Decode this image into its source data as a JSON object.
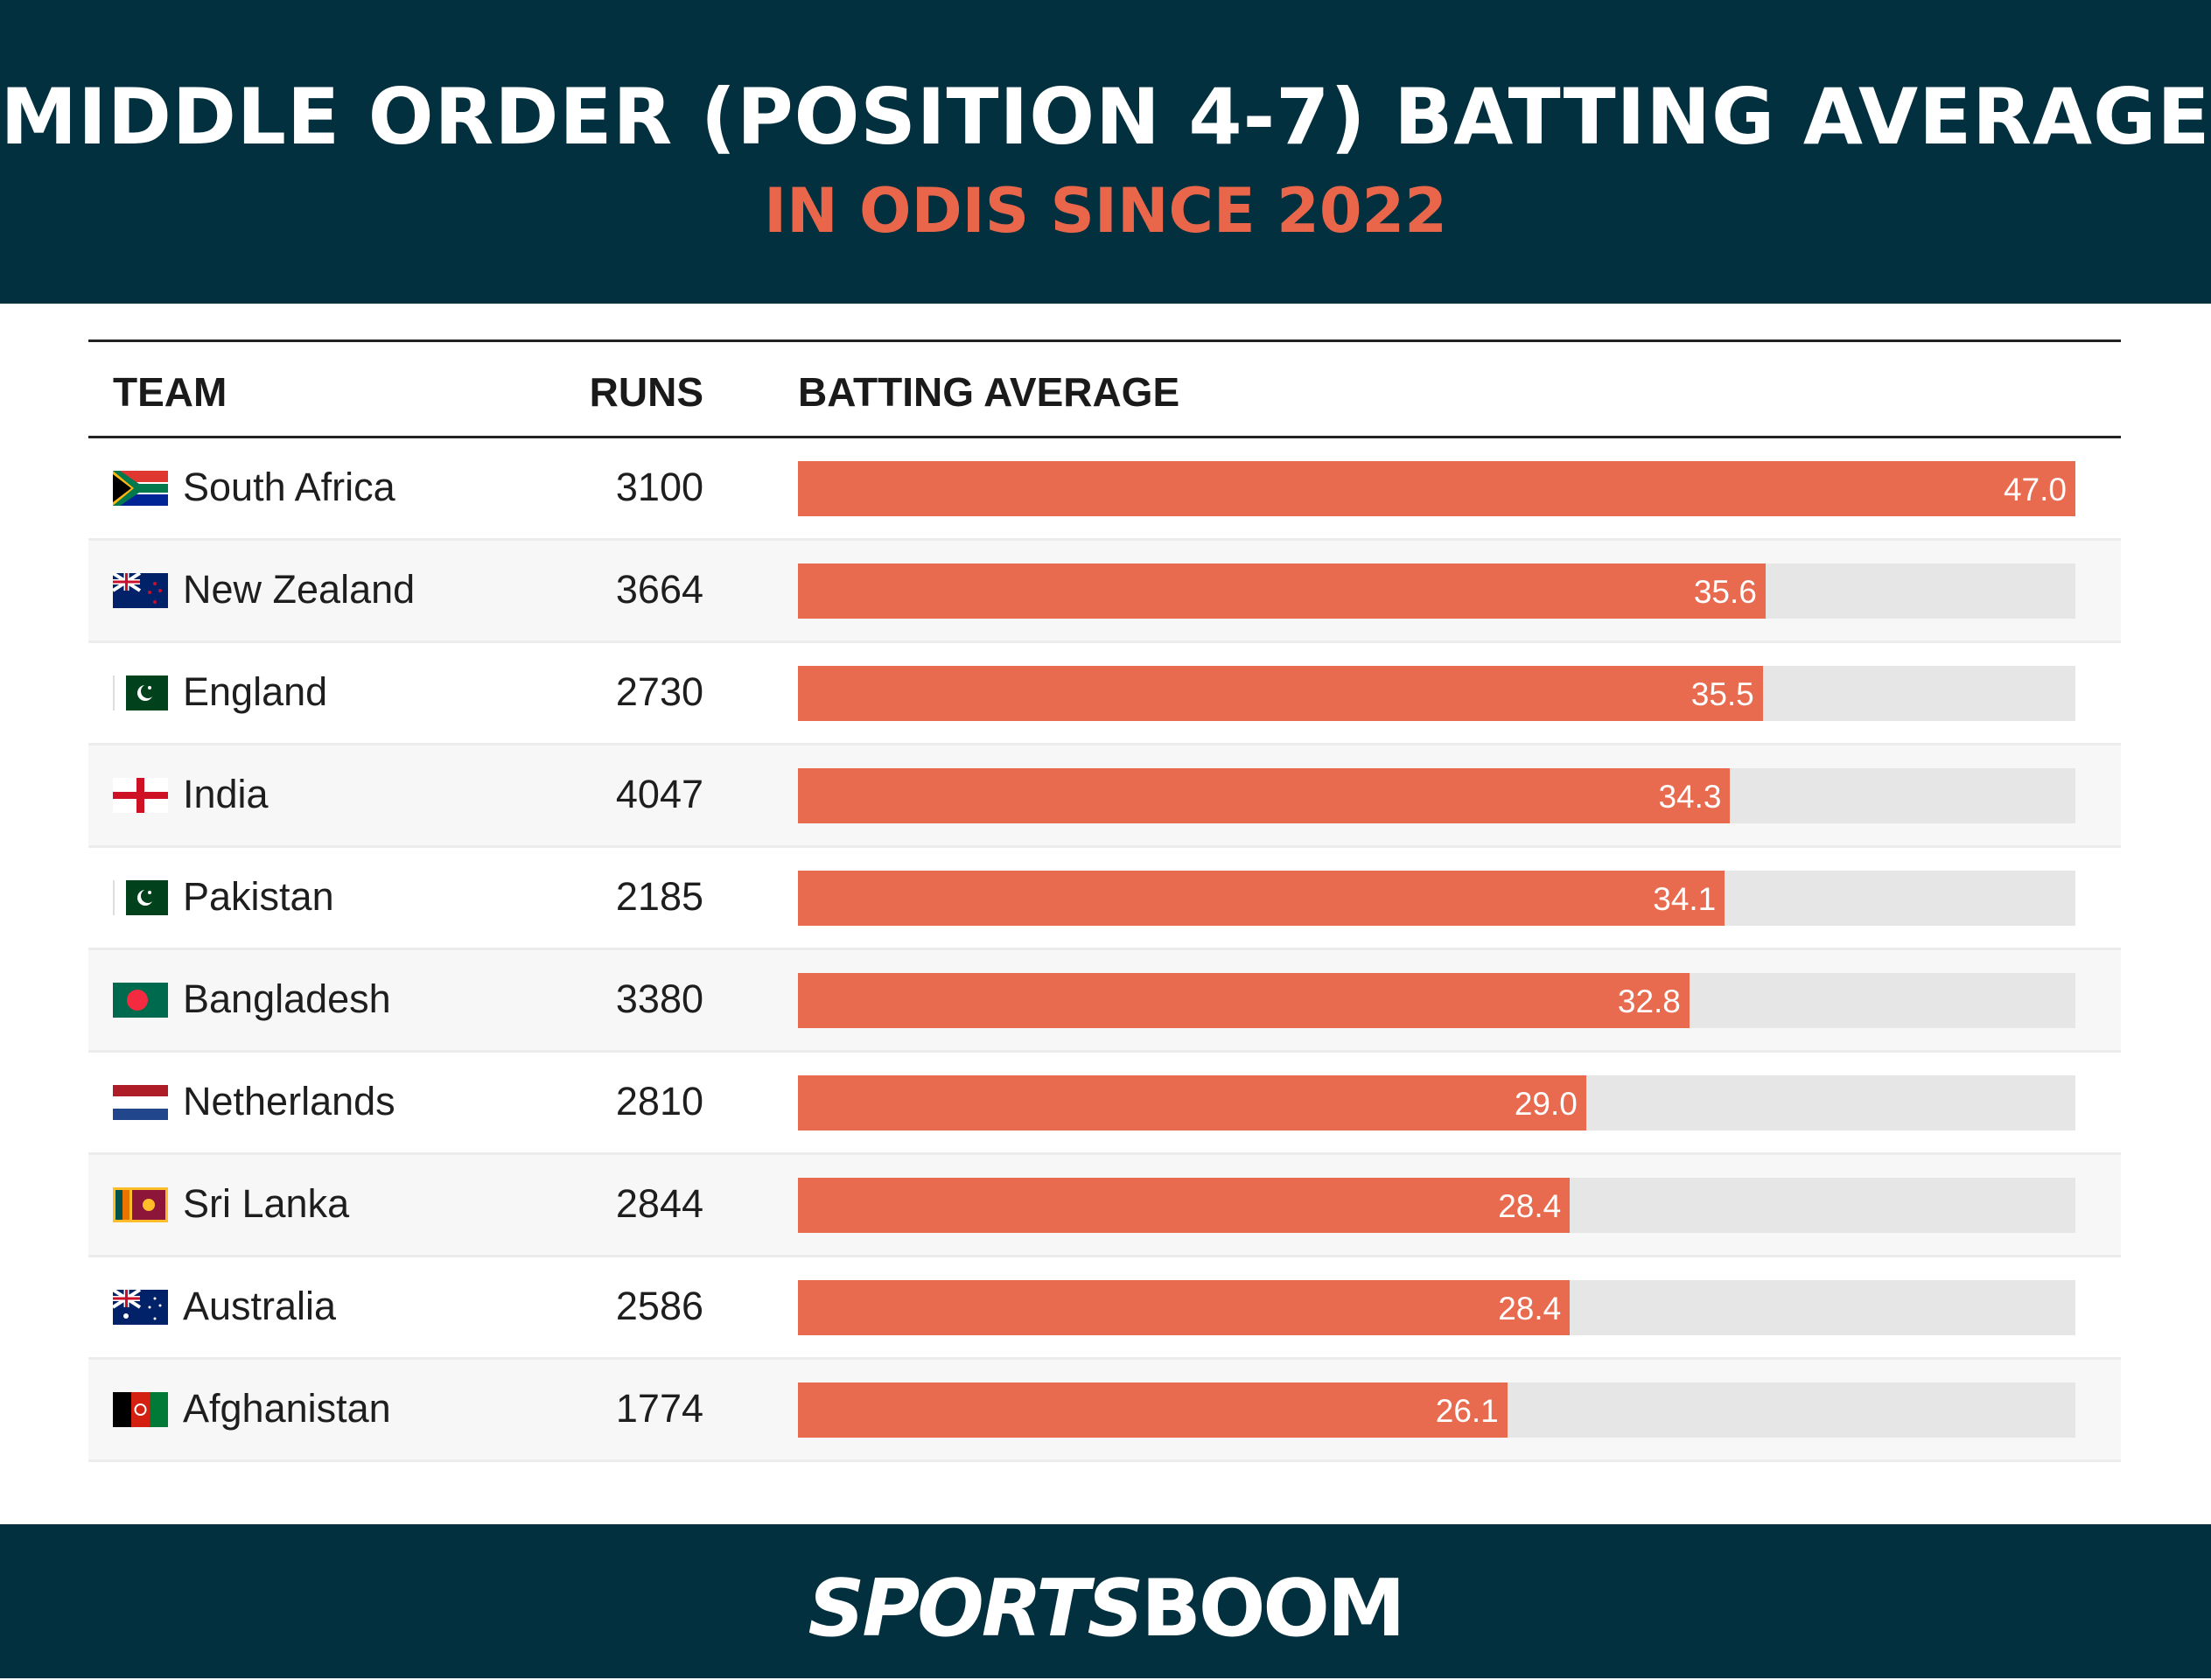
{
  "header": {
    "title": "MIDDLE ORDER (POSITION 4-7) BATTING AVERAGE",
    "subtitle": "IN ODIS SINCE 2022"
  },
  "colors": {
    "background_dark": "#03303f",
    "accent": "#e9664a",
    "bar": "#e96b4f",
    "track": "#e6e6e6"
  },
  "chart_data": {
    "type": "table",
    "columns": [
      "TEAM",
      "RUNS",
      "BATTING AVERAGE"
    ],
    "xlim": [
      0,
      47.0
    ],
    "rows": [
      {
        "team": "South Africa",
        "flag": "south-africa-flag",
        "runs": "3100",
        "average": "47.0"
      },
      {
        "team": "New Zealand",
        "flag": "new-zealand-flag",
        "runs": "3664",
        "average": "35.6"
      },
      {
        "team": "England",
        "flag": "pakistan-flag",
        "runs": "2730",
        "average": "35.5"
      },
      {
        "team": "India",
        "flag": "england-flag",
        "runs": "4047",
        "average": "34.3"
      },
      {
        "team": "Pakistan",
        "flag": "pakistan-flag",
        "runs": "2185",
        "average": "34.1"
      },
      {
        "team": "Bangladesh",
        "flag": "bangladesh-flag",
        "runs": "3380",
        "average": "32.8"
      },
      {
        "team": "Netherlands",
        "flag": "netherlands-flag",
        "runs": "2810",
        "average": "29.0"
      },
      {
        "team": "Sri Lanka",
        "flag": "sri-lanka-flag",
        "runs": "2844",
        "average": "28.4"
      },
      {
        "team": "Australia",
        "flag": "australia-flag",
        "runs": "2586",
        "average": "28.4"
      },
      {
        "team": "Afghanistan",
        "flag": "afghanistan-flag",
        "runs": "1774",
        "average": "26.1"
      }
    ]
  },
  "footer": {
    "logo": "SPORTSBOOM"
  }
}
